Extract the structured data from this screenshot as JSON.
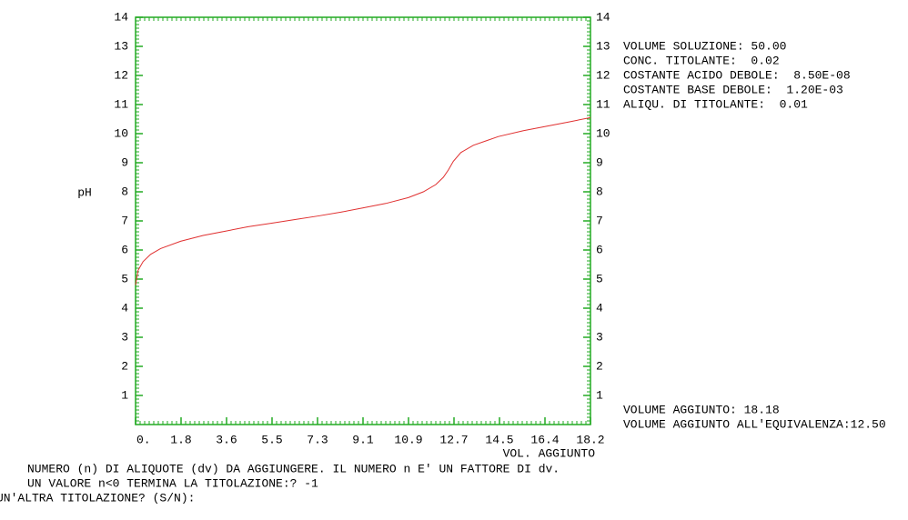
{
  "chart_data": {
    "type": "line",
    "xlabel": "VOL. AGGIUNTO",
    "ylabel": "pH",
    "xlim": [
      0,
      18.18
    ],
    "ylim": [
      0,
      14
    ],
    "xticks": [
      {
        "value": 0,
        "label": "0."
      },
      {
        "value": 1.818,
        "label": "1.8"
      },
      {
        "value": 3.636,
        "label": "3.6"
      },
      {
        "value": 5.454,
        "label": "5.5"
      },
      {
        "value": 7.272,
        "label": "7.3"
      },
      {
        "value": 9.09,
        "label": "9.1"
      },
      {
        "value": 10.908,
        "label": "10.9"
      },
      {
        "value": 12.726,
        "label": "12.7"
      },
      {
        "value": 14.544,
        "label": "14.5"
      },
      {
        "value": 16.362,
        "label": "16.4"
      },
      {
        "value": 18.18,
        "label": "18.2"
      }
    ],
    "yticks": [
      1,
      2,
      3,
      4,
      5,
      6,
      7,
      8,
      9,
      10,
      11,
      12,
      13,
      14
    ],
    "axis_color": "#22aa22",
    "x": [
      0,
      0.1,
      0.3,
      0.6,
      1,
      1.8,
      2.7,
      3.6,
      4.5,
      5.5,
      6.4,
      7.3,
      8.2,
      9.1,
      10,
      10.9,
      11.5,
      12,
      12.3,
      12.5,
      12.7,
      13,
      13.5,
      14,
      14.5,
      15.5,
      16.4,
      17.3,
      18.18
    ],
    "series": [
      {
        "name": "pH",
        "color": "#e03030",
        "values": [
          4.8,
          5.3,
          5.6,
          5.85,
          6.05,
          6.3,
          6.5,
          6.65,
          6.8,
          6.93,
          7.05,
          7.17,
          7.3,
          7.45,
          7.6,
          7.8,
          8.0,
          8.25,
          8.5,
          8.75,
          9.05,
          9.35,
          9.6,
          9.75,
          9.9,
          10.1,
          10.25,
          10.4,
          10.55
        ]
      }
    ]
  },
  "info": [
    "VOLUME SOLUZIONE: 50.00",
    "CONC. TITOLANTE:  0.02",
    "COSTANTE ACIDO DEBOLE:  8.50E-08",
    "COSTANTE BASE DEBOLE:  1.20E-03",
    "ALIQU. DI TITOLANTE:  0.01"
  ],
  "results": [
    "VOLUME AGGIUNTO: 18.18",
    "VOLUME AGGIUNTO ALL'EQUIVALENZA:12.50"
  ],
  "prompt": [
    "NUMERO (n) DI ALIQUOTE (dv) DA AGGIUNGERE. IL NUMERO n E' UN FATTORE DI dv.",
    "UN VALORE n<0 TERMINA LA TITOLAZIONE:? -1",
    "UN'ALTRA TITOLAZIONE? (S/N):"
  ]
}
